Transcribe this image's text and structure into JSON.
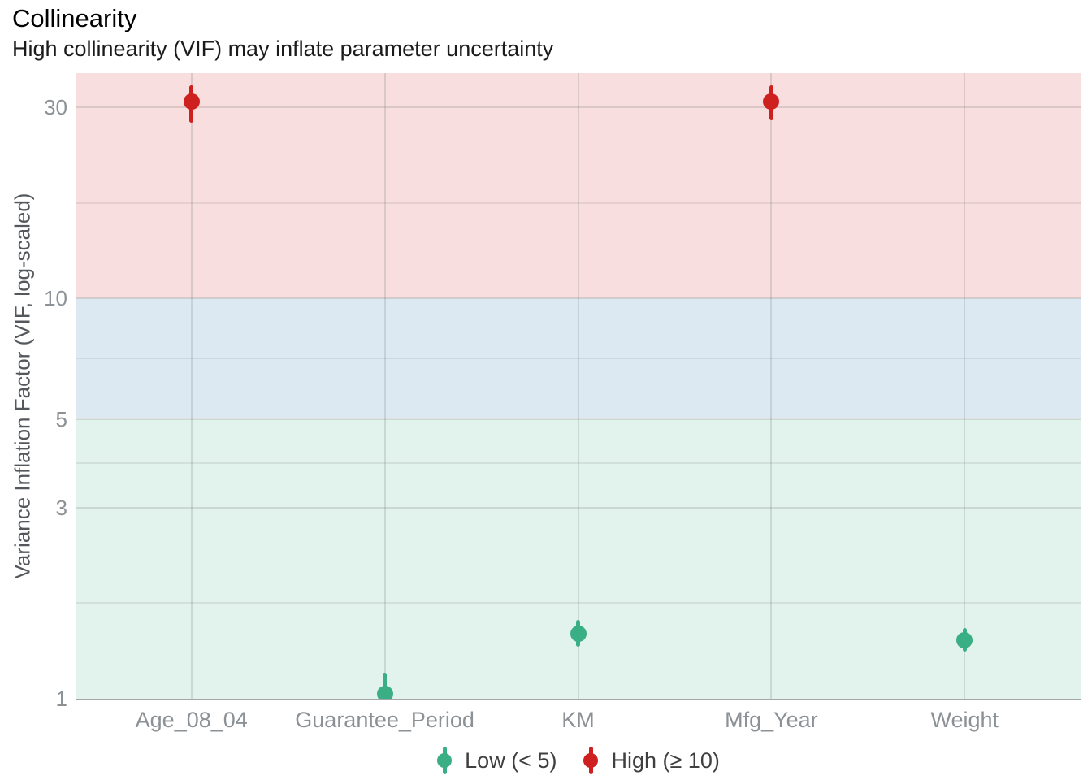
{
  "header": {
    "title": "Collinearity",
    "subtitle": "High collinearity (VIF) may inflate parameter uncertainty"
  },
  "chart_data": {
    "type": "scatter",
    "subtype": "pointrange",
    "title": "Collinearity",
    "subtitle": "High collinearity (VIF) may inflate parameter uncertainty",
    "xlabel": "",
    "ylabel": "Variance Inflation Factor (VIF, log-scaled)",
    "y_scale": "log10",
    "y_ticks": [
      1,
      3,
      5,
      10,
      30
    ],
    "y_domain": [
      1,
      36.5
    ],
    "grid": true,
    "categories": [
      "Age_08_04",
      "Guarantee_Period",
      "KM",
      "Mfg_Year",
      "Weight"
    ],
    "series": [
      {
        "term": "Age_08_04",
        "vif": 31.0,
        "ci_low": 27.5,
        "ci_high": 34.1,
        "group": "High"
      },
      {
        "term": "Guarantee_Period",
        "vif": 1.03,
        "ci_low": 0.95,
        "ci_high": 1.16,
        "group": "Low"
      },
      {
        "term": "KM",
        "vif": 1.45,
        "ci_low": 1.35,
        "ci_high": 1.57,
        "group": "Low"
      },
      {
        "term": "Mfg_Year",
        "vif": 31.0,
        "ci_low": 27.8,
        "ci_high": 34.1,
        "group": "High"
      },
      {
        "term": "Weight",
        "vif": 1.4,
        "ci_low": 1.31,
        "ci_high": 1.5,
        "group": "Low"
      }
    ],
    "groups": {
      "Low": {
        "color": "#3aaf85"
      },
      "High": {
        "color": "#cd201f"
      }
    },
    "bands": [
      {
        "label": "low",
        "from": 1,
        "to": 5,
        "color": "#3aaf85",
        "alpha": 0.15
      },
      {
        "label": "moderate",
        "from": 5,
        "to": 10,
        "color": "#1b6ca8",
        "alpha": 0.15
      },
      {
        "label": "high",
        "from": 10,
        "to": 36.5,
        "color": "#cd201f",
        "alpha": 0.15
      }
    ],
    "legend": {
      "position": "bottom",
      "items": [
        {
          "label": "Low (< 5)",
          "color": "#3aaf85"
        },
        {
          "label": "High (≥ 10)",
          "color": "#cd201f"
        }
      ]
    }
  },
  "palette": {
    "low_point": "#3aaf85",
    "high_point": "#cd201f",
    "moderate_band": "#1b6ca8",
    "tick_label": "#8c9196",
    "axis_title": "#54585c",
    "legend_text": "#3f3f3f",
    "axis_line": "#a6a6a6",
    "title_text": "#000000"
  }
}
